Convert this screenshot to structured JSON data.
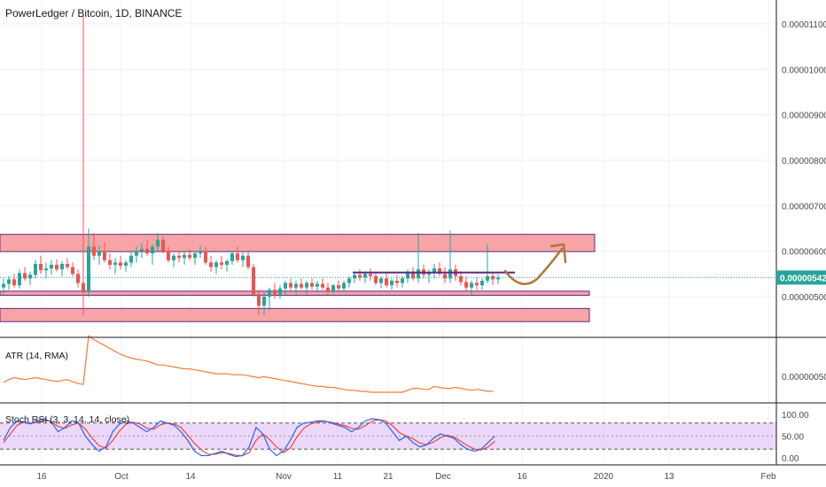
{
  "title": "PowerLedger / Bitcoin, 1D, BINANCE",
  "price_axis": {
    "ticks": [
      "0.00001100",
      "0.00001000",
      "0.00000900",
      "0.00000800",
      "0.00000700",
      "0.00000600",
      "0.00000500"
    ],
    "last_price": "0.00000542"
  },
  "atr": {
    "label": "ATR (14, RMA)",
    "tick": "0.00000050"
  },
  "stoch": {
    "label": "Stoch RSI (3, 3, 14, 14, close)",
    "ticks": [
      "100.00",
      "50.00",
      "0.00"
    ]
  },
  "time_axis": [
    "16",
    "Oct",
    "14",
    "Nov",
    "11",
    "21",
    "Dec",
    "16",
    "2020",
    "13",
    "Feb"
  ],
  "colors": {
    "up": "#26a69a",
    "down": "#ef5350",
    "zone_fill": "#f7a4a6",
    "zone_border": "#5b2a86",
    "arrow": "#b07636",
    "atr_line": "#f57c3a",
    "k_line": "#2962ff",
    "d_line": "#f44336",
    "band": "#e3c8f8"
  },
  "chart_data": {
    "type": "candlestick",
    "title": "PowerLedger / Bitcoin, 1D, BINANCE",
    "price_range_satoshi": [
      0,
      1160
    ],
    "last_price": 5.42e-06,
    "candles_approx_satoshi": [
      [
        520,
        540,
        505,
        528
      ],
      [
        528,
        545,
        515,
        538
      ],
      [
        538,
        550,
        520,
        525
      ],
      [
        525,
        560,
        518,
        552
      ],
      [
        552,
        565,
        535,
        540
      ],
      [
        540,
        555,
        525,
        548
      ],
      [
        548,
        580,
        540,
        572
      ],
      [
        572,
        590,
        550,
        558
      ],
      [
        558,
        575,
        540,
        562
      ],
      [
        562,
        580,
        548,
        570
      ],
      [
        570,
        582,
        555,
        560
      ],
      [
        560,
        578,
        545,
        572
      ],
      [
        572,
        585,
        560,
        565
      ],
      [
        565,
        575,
        545,
        550
      ],
      [
        550,
        560,
        520,
        530
      ],
      [
        530,
        540,
        505,
        512
      ],
      [
        512,
        650,
        500,
        610
      ],
      [
        610,
        640,
        580,
        590
      ],
      [
        590,
        612,
        570,
        600
      ],
      [
        600,
        620,
        575,
        580
      ],
      [
        580,
        595,
        560,
        570
      ],
      [
        570,
        585,
        550,
        575
      ],
      [
        575,
        590,
        560,
        568
      ],
      [
        568,
        580,
        555,
        575
      ],
      [
        575,
        600,
        565,
        590
      ],
      [
        590,
        610,
        575,
        600
      ],
      [
        600,
        618,
        585,
        605
      ],
      [
        605,
        625,
        590,
        595
      ],
      [
        595,
        615,
        570,
        610
      ],
      [
        610,
        640,
        600,
        625
      ],
      [
        625,
        632,
        595,
        600
      ],
      [
        600,
        610,
        575,
        580
      ],
      [
        580,
        595,
        565,
        590
      ],
      [
        590,
        600,
        575,
        585
      ],
      [
        585,
        598,
        570,
        592
      ],
      [
        592,
        605,
        580,
        585
      ],
      [
        585,
        600,
        570,
        595
      ],
      [
        595,
        612,
        585,
        600
      ],
      [
        600,
        610,
        570,
        575
      ],
      [
        575,
        590,
        555,
        565
      ],
      [
        565,
        580,
        550,
        575
      ],
      [
        575,
        590,
        560,
        570
      ],
      [
        570,
        582,
        555,
        578
      ],
      [
        578,
        600,
        570,
        595
      ],
      [
        595,
        610,
        575,
        580
      ],
      [
        580,
        600,
        565,
        590
      ],
      [
        590,
        602,
        560,
        565
      ],
      [
        565,
        572,
        500,
        505
      ],
      [
        505,
        515,
        460,
        480
      ],
      [
        480,
        510,
        460,
        500
      ],
      [
        500,
        520,
        470,
        515
      ],
      [
        515,
        530,
        495,
        505
      ],
      [
        505,
        525,
        495,
        518
      ],
      [
        518,
        535,
        505,
        530
      ],
      [
        530,
        540,
        510,
        520
      ],
      [
        520,
        535,
        505,
        528
      ],
      [
        528,
        540,
        515,
        520
      ],
      [
        520,
        535,
        505,
        530
      ],
      [
        530,
        540,
        515,
        522
      ],
      [
        522,
        535,
        510,
        528
      ],
      [
        528,
        540,
        515,
        520
      ],
      [
        520,
        530,
        505,
        512
      ],
      [
        512,
        528,
        505,
        525
      ],
      [
        525,
        535,
        512,
        518
      ],
      [
        518,
        535,
        510,
        530
      ],
      [
        530,
        545,
        520,
        540
      ],
      [
        540,
        555,
        530,
        548
      ],
      [
        548,
        560,
        535,
        542
      ],
      [
        542,
        556,
        530,
        550
      ],
      [
        550,
        562,
        535,
        545
      ],
      [
        545,
        555,
        525,
        530
      ],
      [
        530,
        545,
        518,
        540
      ],
      [
        540,
        552,
        520,
        525
      ],
      [
        525,
        540,
        515,
        535
      ],
      [
        535,
        548,
        520,
        530
      ],
      [
        530,
        545,
        520,
        540
      ],
      [
        540,
        560,
        530,
        555
      ],
      [
        555,
        565,
        535,
        540
      ],
      [
        540,
        640,
        530,
        560
      ],
      [
        560,
        570,
        540,
        548
      ],
      [
        548,
        560,
        530,
        552
      ],
      [
        552,
        572,
        540,
        562
      ],
      [
        562,
        575,
        545,
        550
      ],
      [
        550,
        565,
        530,
        540
      ],
      [
        540,
        645,
        530,
        560
      ],
      [
        560,
        570,
        535,
        545
      ],
      [
        545,
        556,
        525,
        532
      ],
      [
        532,
        545,
        510,
        520
      ],
      [
        520,
        535,
        505,
        530
      ],
      [
        530,
        542,
        515,
        525
      ],
      [
        525,
        540,
        515,
        535
      ],
      [
        535,
        615,
        530,
        545
      ],
      [
        545,
        555,
        525,
        538
      ],
      [
        538,
        550,
        528,
        542
      ]
    ],
    "resistance_zone": [
      5.99e-06,
      6.37e-06
    ],
    "mid_zone": [
      5.03e-06,
      5.12e-06
    ],
    "support_zone": [
      4.45e-06,
      4.74e-06
    ],
    "channel_top": 5.53e-06,
    "atr": {
      "label": "ATR (14, RMA)",
      "values_satoshi": [
        22,
        25,
        27,
        26,
        25,
        26,
        27,
        26,
        25,
        24,
        23,
        24,
        25,
        23,
        21,
        20,
        70,
        66,
        63,
        60,
        57,
        54,
        51,
        49,
        47,
        46,
        45,
        44,
        42,
        40,
        40,
        39,
        38,
        37,
        36,
        36,
        35,
        34,
        33,
        32,
        31,
        31,
        31,
        30,
        30,
        30,
        29,
        28,
        27,
        28,
        27,
        26,
        25,
        24,
        23,
        22,
        21,
        20,
        19,
        18,
        18,
        17,
        17,
        16,
        15,
        14,
        14,
        13,
        13,
        12,
        12,
        12,
        12,
        12,
        12,
        12,
        14,
        16,
        16,
        15,
        15,
        18,
        17,
        16,
        16,
        17,
        16,
        15,
        14,
        15,
        14,
        13,
        13
      ]
    },
    "stoch_rsi": {
      "label": "Stoch RSI (3, 3, 14, 14, close)",
      "ylim": [
        0,
        100
      ],
      "bands": [
        20,
        80
      ],
      "k": [
        40,
        70,
        85,
        82,
        78,
        86,
        90,
        82,
        60,
        70,
        85,
        80,
        50,
        30,
        15,
        25,
        60,
        78,
        85,
        80,
        70,
        60,
        70,
        85,
        80,
        75,
        60,
        40,
        15,
        5,
        5,
        10,
        15,
        8,
        3,
        5,
        25,
        70,
        55,
        20,
        5,
        15,
        40,
        70,
        80,
        82,
        85,
        85,
        80,
        75,
        70,
        60,
        70,
        85,
        90,
        88,
        80,
        60,
        40,
        50,
        35,
        25,
        30,
        45,
        55,
        50,
        45,
        30,
        20,
        15,
        20,
        35,
        50
      ],
      "d": [
        35,
        55,
        75,
        82,
        80,
        82,
        86,
        84,
        72,
        68,
        76,
        80,
        66,
        45,
        28,
        22,
        40,
        62,
        78,
        82,
        78,
        68,
        66,
        76,
        80,
        78,
        70,
        52,
        33,
        18,
        8,
        8,
        12,
        10,
        6,
        5,
        12,
        40,
        55,
        42,
        25,
        12,
        22,
        48,
        68,
        78,
        82,
        84,
        82,
        78,
        74,
        68,
        66,
        74,
        84,
        88,
        85,
        74,
        58,
        50,
        44,
        34,
        30,
        36,
        46,
        52,
        48,
        38,
        28,
        20,
        18,
        25,
        38
      ]
    },
    "x_ticks": [
      "16",
      "Oct",
      "14",
      "Nov",
      "11",
      "21",
      "Dec",
      "16",
      "2020",
      "13",
      "Feb"
    ],
    "y_ticks": [
      "0.00001100",
      "0.00001000",
      "0.00000900",
      "0.00000800",
      "0.00000700",
      "0.00000600",
      "0.00000500"
    ]
  }
}
